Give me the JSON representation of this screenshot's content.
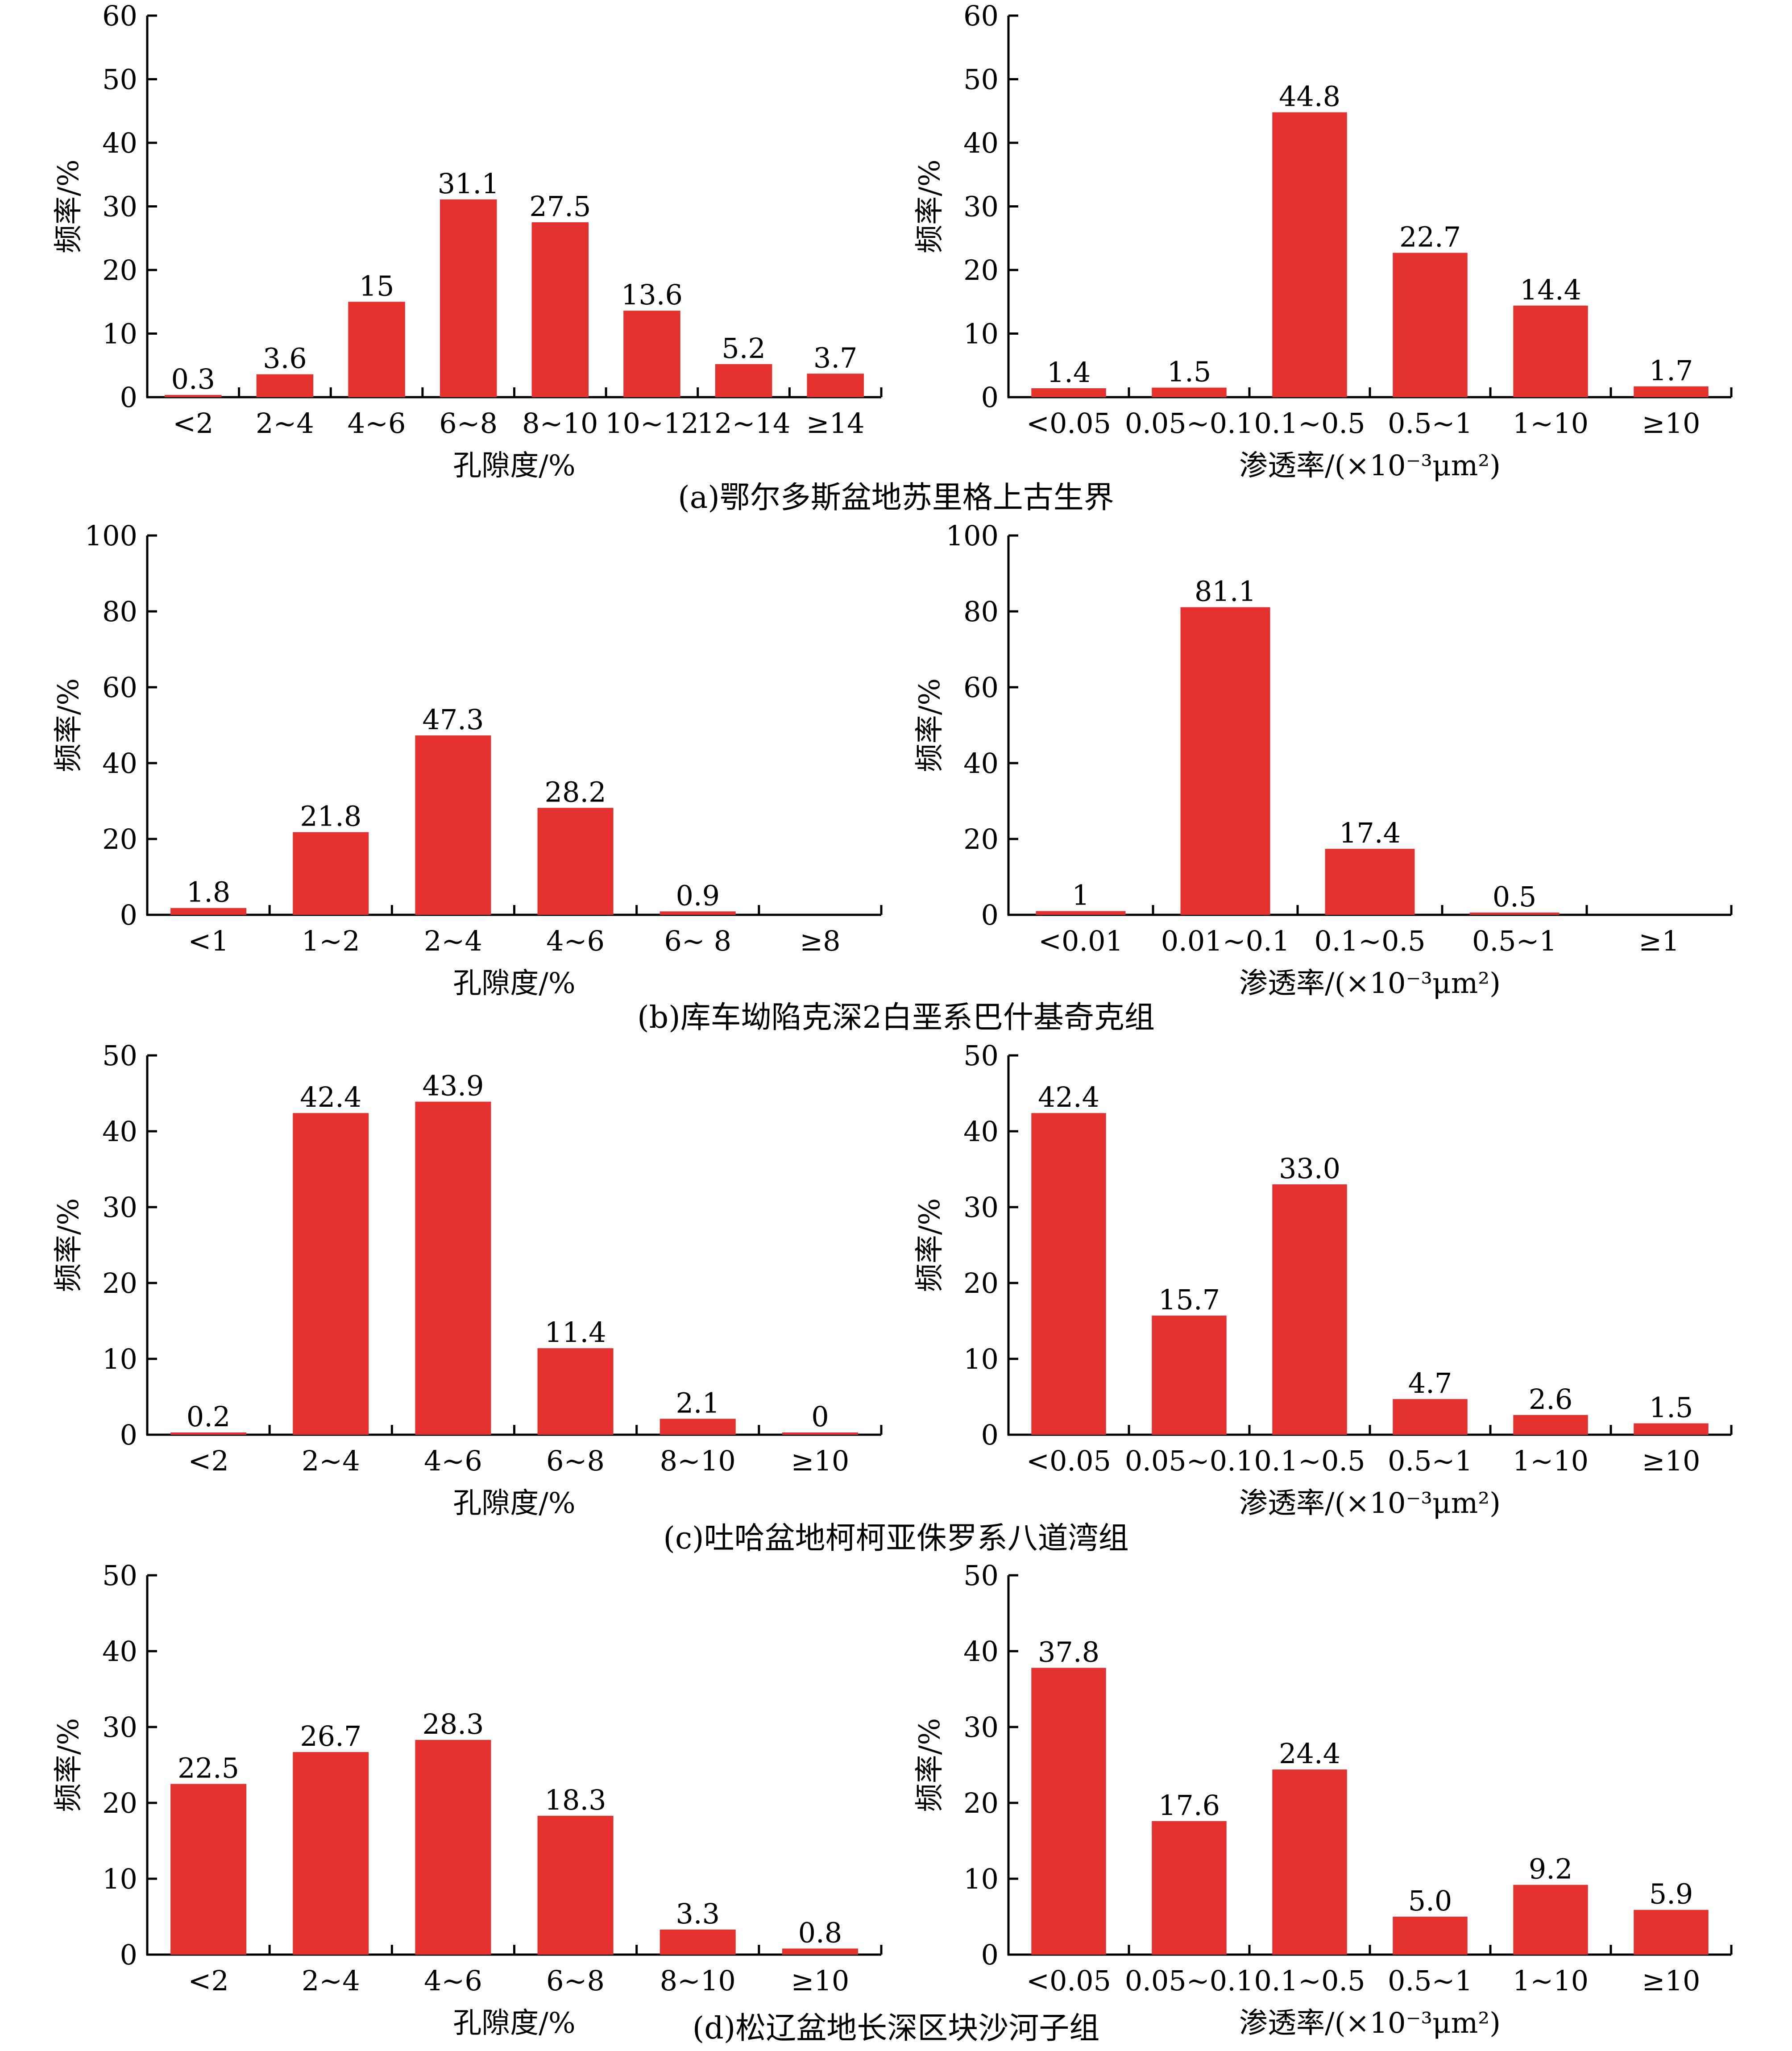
{
  "colors": {
    "bar": "#E4312D",
    "axis": "#000000",
    "text": "#000000"
  },
  "chart_data": [
    {
      "id": "a-left",
      "type": "bar",
      "categories": [
        "<2",
        "2~4",
        "4~6",
        "6~8",
        "8~10",
        "10~12",
        "12~14",
        "≥14"
      ],
      "values": [
        0.3,
        3.6,
        15,
        31.1,
        27.5,
        13.6,
        5.2,
        3.7
      ],
      "value_labels": [
        "0.3",
        "3.6",
        "15",
        "31.1",
        "27.5",
        "13.6",
        "5.2",
        "3.7"
      ],
      "yticks": [
        "0",
        "10",
        "20",
        "30",
        "40",
        "50",
        "60"
      ],
      "ylim": [
        0,
        60
      ],
      "xlabel": "孔隙度/%",
      "ylabel": "频率/%"
    },
    {
      "id": "a-right",
      "type": "bar",
      "categories": [
        "<0.05",
        "0.05~0.1",
        "0.1~0.5",
        "0.5~1",
        "1~10",
        "≥10"
      ],
      "values": [
        1.4,
        1.5,
        44.8,
        22.7,
        14.4,
        1.7
      ],
      "value_labels": [
        "1.4",
        "1.5",
        "44.8",
        "22.7",
        "14.4",
        "1.7"
      ],
      "yticks": [
        "0",
        "10",
        "20",
        "30",
        "40",
        "50",
        "60"
      ],
      "ylim": [
        0,
        60
      ],
      "xlabel": "渗透率/(×10⁻³μm²)",
      "ylabel": "频率/%"
    },
    {
      "id": "b-left",
      "type": "bar",
      "categories": [
        "<1",
        "1~2",
        "2~4",
        "4~6",
        "6~ 8",
        "≥8"
      ],
      "values": [
        1.8,
        21.8,
        47.3,
        28.2,
        0.9,
        null
      ],
      "value_labels": [
        "1.8",
        "21.8",
        "47.3",
        "28.2",
        "0.9",
        ""
      ],
      "yticks": [
        "0",
        "20",
        "40",
        "60",
        "80",
        "100"
      ],
      "ylim": [
        0,
        100
      ],
      "xlabel": "孔隙度/%",
      "ylabel": "频率/%"
    },
    {
      "id": "b-right",
      "type": "bar",
      "categories": [
        "<0.01",
        "0.01~0.1",
        "0.1~0.5",
        "0.5~1",
        "≥1"
      ],
      "values": [
        1,
        81.1,
        17.4,
        0.5,
        null
      ],
      "value_labels": [
        "1",
        "81.1",
        "17.4",
        "0.5",
        ""
      ],
      "yticks": [
        "0",
        "20",
        "40",
        "60",
        "80",
        "100"
      ],
      "ylim": [
        0,
        100
      ],
      "xlabel": "渗透率/(×10⁻³μm²)",
      "ylabel": "频率/%"
    },
    {
      "id": "c-left",
      "type": "bar",
      "categories": [
        "<2",
        "2~4",
        "4~6",
        "6~8",
        "8~10",
        "≥10"
      ],
      "values": [
        0.2,
        42.4,
        43.9,
        11.4,
        2.1,
        0
      ],
      "value_labels": [
        "0.2",
        "42.4",
        "43.9",
        "11.4",
        "2.1",
        "0"
      ],
      "yticks": [
        "0",
        "10",
        "20",
        "30",
        "40",
        "50"
      ],
      "ylim": [
        0,
        50
      ],
      "xlabel": "孔隙度/%",
      "ylabel": "频率/%"
    },
    {
      "id": "c-right",
      "type": "bar",
      "categories": [
        "<0.05",
        "0.05~0.1",
        "0.1~0.5",
        "0.5~1",
        "1~10",
        "≥10"
      ],
      "values": [
        42.4,
        15.7,
        33.0,
        4.7,
        2.6,
        1.5
      ],
      "value_labels": [
        "42.4",
        "15.7",
        "33.0",
        "4.7",
        "2.6",
        "1.5"
      ],
      "yticks": [
        "0",
        "10",
        "20",
        "30",
        "40",
        "50"
      ],
      "ylim": [
        0,
        50
      ],
      "xlabel": "渗透率/(×10⁻³μm²)",
      "ylabel": "频率/%"
    },
    {
      "id": "d-left",
      "type": "bar",
      "categories": [
        "<2",
        "2~4",
        "4~6",
        "6~8",
        "8~10",
        "≥10"
      ],
      "values": [
        22.5,
        26.7,
        28.3,
        18.3,
        3.3,
        0.8
      ],
      "value_labels": [
        "22.5",
        "26.7",
        "28.3",
        "18.3",
        "3.3",
        "0.8"
      ],
      "yticks": [
        "0",
        "10",
        "20",
        "30",
        "40",
        "50"
      ],
      "ylim": [
        0,
        50
      ],
      "xlabel": "孔隙度/%",
      "ylabel": "频率/%"
    },
    {
      "id": "d-right",
      "type": "bar",
      "categories": [
        "<0.05",
        "0.05~0.1",
        "0.1~0.5",
        "0.5~1",
        "1~10",
        "≥10"
      ],
      "values": [
        37.8,
        17.6,
        24.4,
        5.0,
        9.2,
        5.9
      ],
      "value_labels": [
        "37.8",
        "17.6",
        "24.4",
        "5.0",
        "9.2",
        "5.9"
      ],
      "yticks": [
        "0",
        "10",
        "20",
        "30",
        "40",
        "50"
      ],
      "ylim": [
        0,
        50
      ],
      "xlabel": "渗透率/(×10⁻³μm²)",
      "ylabel": "频率/%"
    }
  ],
  "captions": [
    "(a)鄂尔多斯盆地苏里格上古生界",
    "(b)库车坳陷克深2白垩系巴什基奇克组",
    "(c)吐哈盆地柯柯亚侏罗系八道湾组",
    "(d)松辽盆地长深区块沙河子组"
  ]
}
